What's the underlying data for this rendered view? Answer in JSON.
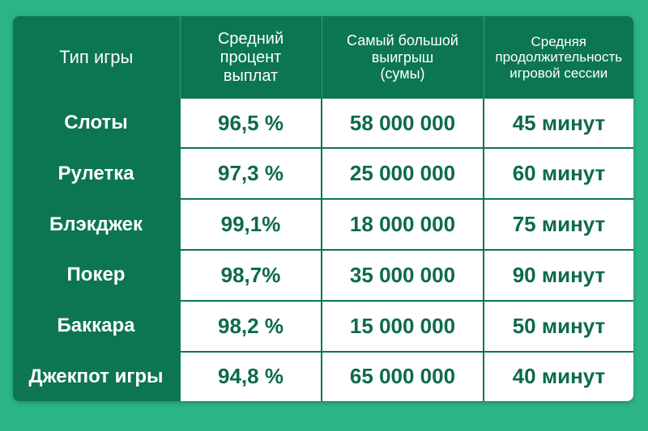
{
  "headers": [
    {
      "lines": [
        "Тип игры"
      ]
    },
    {
      "lines": [
        "Средний",
        "процент",
        "выплат"
      ]
    },
    {
      "lines": [
        "Самый большой",
        "выигрыш",
        "(сумы)"
      ]
    },
    {
      "lines": [
        "Средняя",
        "продолжительность",
        "игровой сессии"
      ]
    }
  ],
  "rows": [
    {
      "game": "Слоты",
      "payout": "96,5 %",
      "max_win": "58 000 000",
      "duration": "45 минут"
    },
    {
      "game": "Рулетка",
      "payout": "97,3 %",
      "max_win": "25 000 000",
      "duration": "60 минут"
    },
    {
      "game": "Блэкджек",
      "payout": "99,1%",
      "max_win": "18 000 000",
      "duration": "75 минут"
    },
    {
      "game": "Покер",
      "payout": "98,7%",
      "max_win": "35 000 000",
      "duration": "90 минут"
    },
    {
      "game": "Баккара",
      "payout": "98,2 %",
      "max_win": "15 000 000",
      "duration": "50 минут"
    },
    {
      "game": "Джекпот игры",
      "payout": "94,8 %",
      "max_win": "65 000 000",
      "duration": "40 минут"
    }
  ],
  "colors": {
    "background": "#2bb585",
    "header": "#0c7650",
    "cell": "#ffffff",
    "value_text": "#0d6b47"
  }
}
